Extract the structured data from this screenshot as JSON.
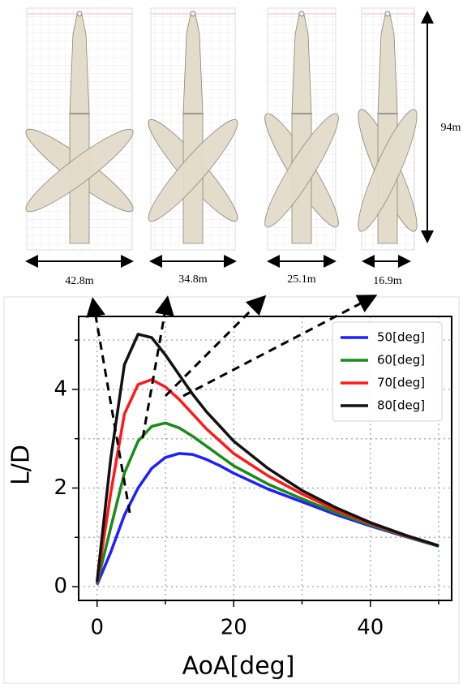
{
  "figure": {
    "widths": [
      "42.8m",
      "34.8m",
      "25.1m",
      "16.9m"
    ],
    "height": "94m"
  },
  "chart_data": {
    "type": "line",
    "x_label": "AoA[deg]",
    "y_label": "L/D",
    "x": [
      0,
      2,
      4,
      6,
      8,
      10,
      12,
      14,
      16,
      18,
      20,
      25,
      30,
      35,
      40,
      45,
      50
    ],
    "series": [
      {
        "name": "50[deg]",
        "color": "#1f1fff",
        "values": [
          0.04,
          0.7,
          1.45,
          2.0,
          2.4,
          2.62,
          2.7,
          2.68,
          2.58,
          2.45,
          2.3,
          1.98,
          1.72,
          1.46,
          1.23,
          1.02,
          0.82
        ]
      },
      {
        "name": "60[deg]",
        "color": "#1a8a1a",
        "values": [
          0.06,
          1.2,
          2.3,
          2.95,
          3.25,
          3.32,
          3.22,
          3.05,
          2.85,
          2.65,
          2.45,
          2.08,
          1.78,
          1.5,
          1.25,
          1.03,
          0.82
        ]
      },
      {
        "name": "70[deg]",
        "color": "#ff1a1a",
        "values": [
          0.08,
          1.9,
          3.5,
          4.1,
          4.2,
          4.05,
          3.8,
          3.5,
          3.2,
          2.95,
          2.7,
          2.25,
          1.88,
          1.55,
          1.28,
          1.04,
          0.83
        ]
      },
      {
        "name": "80[deg]",
        "color": "#111111",
        "values": [
          0.1,
          2.6,
          4.5,
          5.12,
          5.05,
          4.7,
          4.3,
          3.9,
          3.55,
          3.25,
          2.95,
          2.4,
          1.95,
          1.6,
          1.3,
          1.05,
          0.83
        ]
      }
    ],
    "xlim": [
      -2.7,
      51.9
    ],
    "ylim": [
      -0.28,
      5.48
    ],
    "xticks": [
      0,
      20,
      40
    ],
    "yticks": [
      0,
      2,
      4
    ],
    "minor_xticks": [
      10,
      30,
      50
    ],
    "minor_yticks": [
      1,
      3,
      5
    ],
    "grid": true,
    "legend": "upper right"
  }
}
